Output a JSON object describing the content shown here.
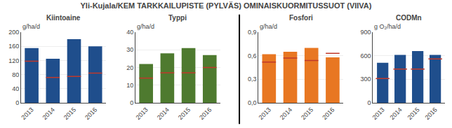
{
  "title": "Yli-Kujala/KEM TARKKAILUPISTE (PYLVÄS) OMINAISKUORMITUSSUOT (VIIVA)",
  "chart_data": [
    {
      "type": "bar",
      "title": "Kiintoaine",
      "ylabel": "g/ha/d",
      "categories": [
        "2013",
        "2014",
        "2015",
        "2016"
      ],
      "series": [
        {
          "type": "bar",
          "color": "#1F4E8C",
          "values": [
            155,
            125,
            180,
            160
          ]
        },
        {
          "type": "scatter",
          "marker": "line-ew",
          "color": "#C0392B",
          "values": [
            118,
            72,
            75,
            84
          ]
        }
      ],
      "ylim": [
        0,
        200
      ],
      "yticks": [
        0,
        40,
        80,
        120,
        160,
        200
      ],
      "grid": true
    },
    {
      "type": "bar",
      "title": "Typpi",
      "ylabel": "g/ha/d",
      "categories": [
        "2013",
        "2014",
        "2015",
        "2016"
      ],
      "series": [
        {
          "type": "bar",
          "color": "#4E7A2F",
          "values": [
            22,
            28,
            31,
            27
          ]
        },
        {
          "type": "scatter",
          "marker": "line-ew",
          "color": "#C0392B",
          "values": [
            14,
            17,
            17,
            20
          ]
        }
      ],
      "ylim": [
        0,
        40
      ],
      "yticks": [
        0,
        10,
        20,
        30,
        40
      ],
      "grid": true
    },
    {
      "type": "bar",
      "title": "Fosfori",
      "ylabel": "g/ha/d",
      "categories": [
        "2013",
        "2014",
        "2015",
        "2016"
      ],
      "series": [
        {
          "type": "bar",
          "color": "#E87722",
          "values": [
            0.62,
            0.65,
            0.7,
            0.58
          ]
        },
        {
          "type": "scatter",
          "marker": "line-ew",
          "color": "#C0392B",
          "values": [
            0.52,
            0.57,
            0.54,
            0.63
          ]
        }
      ],
      "ylim": [
        0.0,
        0.9
      ],
      "yticks": [
        {
          "value": 0.0,
          "label": "0,0"
        },
        {
          "value": 0.3,
          "label": "0,3"
        },
        {
          "value": 0.6,
          "label": "0,6"
        },
        {
          "value": 0.9,
          "label": "0,9"
        }
      ],
      "grid": true
    },
    {
      "type": "bar",
      "title": "CODMn",
      "ylabel": "g O₂/ha/d",
      "categories": [
        "2013",
        "2014",
        "2015",
        "2016"
      ],
      "series": [
        {
          "type": "bar",
          "color": "#1F4E8C",
          "values": [
            510,
            610,
            660,
            610
          ]
        },
        {
          "type": "scatter",
          "marker": "line-ew",
          "color": "#C0392B",
          "values": [
            310,
            430,
            430,
            560
          ]
        }
      ],
      "ylim": [
        0,
        900
      ],
      "yticks": [
        0,
        300,
        600,
        900
      ],
      "grid": true
    }
  ]
}
